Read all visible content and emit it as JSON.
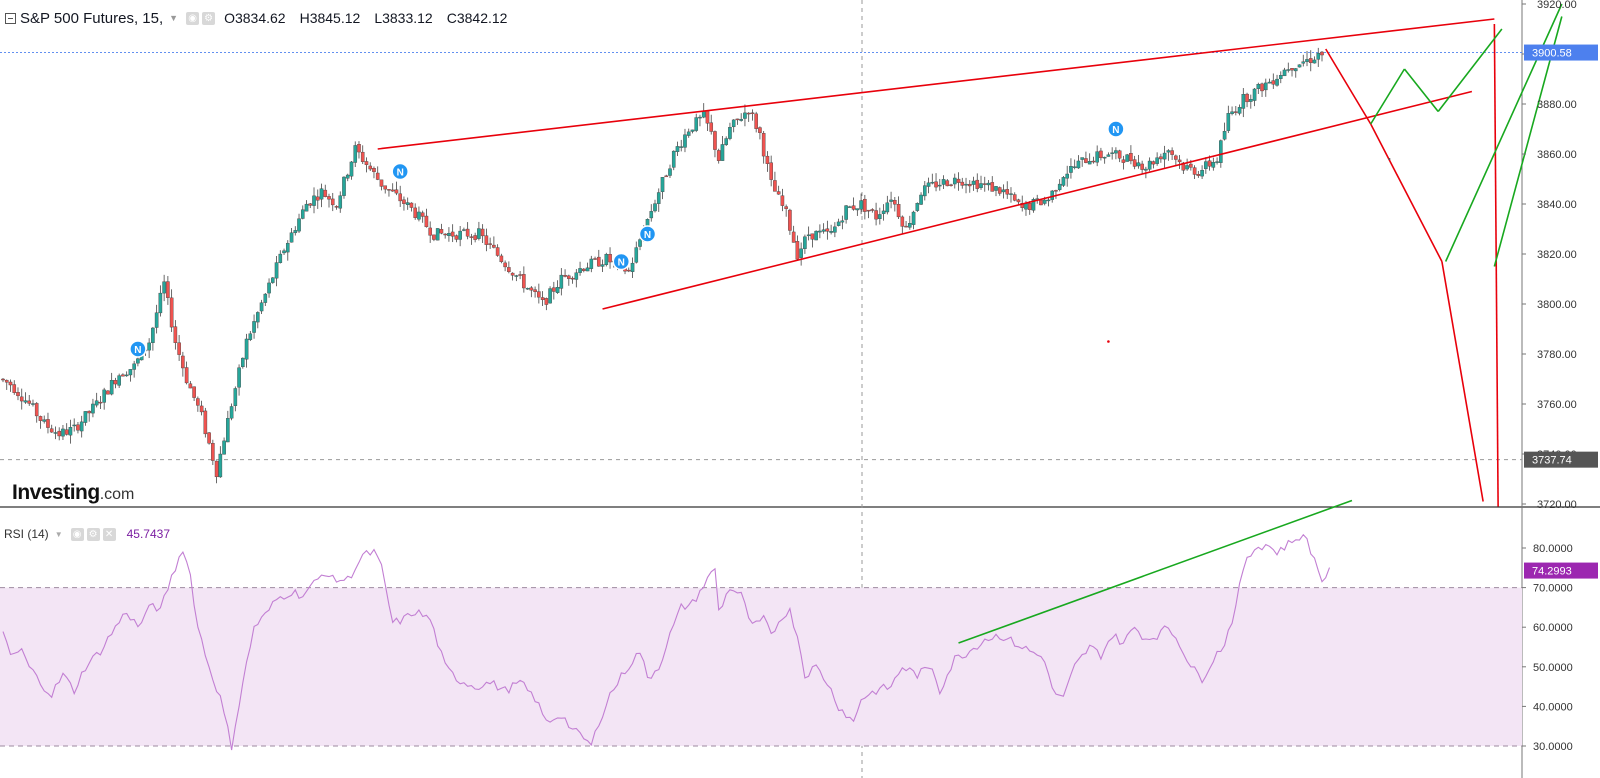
{
  "legend": {
    "title": "S&P 500 Futures, 15,",
    "open_label": "O",
    "open": "3834.62",
    "high_label": "H",
    "high": "3845.12",
    "low_label": "L",
    "low": "3833.12",
    "close_label": "C",
    "close": "3842.12"
  },
  "rsi_legend": {
    "title": "RSI (14)",
    "value": "45.7437"
  },
  "brand": {
    "name": "Investing",
    "suffix": ".com"
  },
  "colors": {
    "up": "#26a69a",
    "down": "#ef5350",
    "drawing_red": "#e8000b",
    "drawing_green": "#18a81f",
    "rsi_line": "#c27fd3",
    "rsi_band": "#f3e5f5",
    "price_tag": "#4d80ee",
    "rsi_tag": "#9c27b0",
    "last_tag": "#555555",
    "news_marker": "#2196f3"
  },
  "chart_data": [
    {
      "type": "candlestick",
      "name": "S&P 500 Futures",
      "y_axis": {
        "min": 3720,
        "max": 3920,
        "ticks": [
          "3720.00",
          "3740.00",
          "3760.00",
          "3780.00",
          "3800.00",
          "3820.00",
          "3840.00",
          "3860.00",
          "3880.00",
          "3900.00",
          "3920.00"
        ]
      },
      "price_tags": [
        {
          "label": "3900.58",
          "value": 3900.58,
          "kind": "current"
        },
        {
          "label": "3737.74",
          "value": 3737.74,
          "kind": "reference"
        }
      ],
      "anchors": [
        [
          0,
          3770
        ],
        [
          3,
          3768
        ],
        [
          8,
          3760
        ],
        [
          12,
          3752
        ],
        [
          16,
          3748
        ],
        [
          20,
          3750
        ],
        [
          26,
          3760
        ],
        [
          32,
          3772
        ],
        [
          36,
          3775
        ],
        [
          40,
          3785
        ],
        [
          44,
          3808
        ],
        [
          47,
          3785
        ],
        [
          50,
          3770
        ],
        [
          54,
          3755
        ],
        [
          58,
          3733
        ],
        [
          62,
          3760
        ],
        [
          66,
          3785
        ],
        [
          70,
          3800
        ],
        [
          76,
          3822
        ],
        [
          82,
          3840
        ],
        [
          86,
          3845
        ],
        [
          90,
          3840
        ],
        [
          95,
          3862
        ],
        [
          102,
          3848
        ],
        [
          110,
          3838
        ],
        [
          116,
          3828
        ],
        [
          122,
          3828
        ],
        [
          128,
          3828
        ],
        [
          134,
          3818
        ],
        [
          140,
          3808
        ],
        [
          145,
          3800
        ],
        [
          150,
          3810
        ],
        [
          156,
          3815
        ],
        [
          162,
          3818
        ],
        [
          168,
          3813
        ],
        [
          172,
          3830
        ],
        [
          176,
          3845
        ],
        [
          180,
          3860
        ],
        [
          184,
          3870
        ],
        [
          188,
          3875
        ],
        [
          190,
          3868
        ],
        [
          192,
          3858
        ],
        [
          195,
          3870
        ],
        [
          198,
          3875
        ],
        [
          200,
          3878
        ],
        [
          203,
          3868
        ],
        [
          206,
          3848
        ],
        [
          210,
          3836
        ],
        [
          213,
          3820
        ],
        [
          216,
          3828
        ],
        [
          222,
          3828
        ],
        [
          226,
          3838
        ],
        [
          230,
          3840
        ],
        [
          234,
          3835
        ],
        [
          238,
          3843
        ],
        [
          242,
          3830
        ],
        [
          246,
          3845
        ],
        [
          250,
          3848
        ],
        [
          256,
          3850
        ],
        [
          262,
          3848
        ],
        [
          268,
          3845
        ],
        [
          273,
          3838
        ],
        [
          276,
          3840
        ],
        [
          280,
          3842
        ],
        [
          284,
          3852
        ],
        [
          290,
          3858
        ],
        [
          296,
          3860
        ],
        [
          302,
          3858
        ],
        [
          306,
          3855
        ],
        [
          312,
          3862
        ],
        [
          316,
          3855
        ],
        [
          320,
          3853
        ],
        [
          325,
          3858
        ],
        [
          328,
          3875
        ],
        [
          332,
          3882
        ],
        [
          336,
          3886
        ],
        [
          340,
          3890
        ],
        [
          344,
          3895
        ],
        [
          350,
          3898
        ],
        [
          352,
          3900
        ]
      ],
      "news_markers": [
        {
          "label": "N",
          "x": 36,
          "y": 3782
        },
        {
          "label": "N",
          "x": 106,
          "y": 3853
        },
        {
          "label": "N",
          "x": 165,
          "y": 3817
        },
        {
          "label": "N",
          "x": 172,
          "y": 3828
        },
        {
          "label": "N",
          "x": 297,
          "y": 3870
        }
      ]
    },
    {
      "type": "line",
      "name": "RSI (14)",
      "y_axis": {
        "min": 30,
        "max": 80,
        "ticks": [
          "30.0000",
          "40.0000",
          "50.0000",
          "60.0000",
          "70.0000",
          "80.0000"
        ]
      },
      "band": [
        30,
        70
      ],
      "value_tag": {
        "label": "74.2993",
        "value": 74.2993
      },
      "anchors": [
        [
          0,
          58
        ],
        [
          2,
          53
        ],
        [
          5,
          54
        ],
        [
          7,
          50
        ],
        [
          10,
          46
        ],
        [
          13,
          43
        ],
        [
          16,
          48
        ],
        [
          19,
          44
        ],
        [
          22,
          50
        ],
        [
          26,
          54
        ],
        [
          30,
          60
        ],
        [
          33,
          64
        ],
        [
          36,
          60
        ],
        [
          40,
          66
        ],
        [
          42,
          64
        ],
        [
          44,
          70
        ],
        [
          46,
          75
        ],
        [
          48,
          80
        ],
        [
          50,
          73
        ],
        [
          52,
          60
        ],
        [
          55,
          50
        ],
        [
          58,
          42
        ],
        [
          60,
          34
        ],
        [
          61,
          30
        ],
        [
          64,
          46
        ],
        [
          67,
          60
        ],
        [
          70,
          63
        ],
        [
          73,
          67
        ],
        [
          77,
          69
        ],
        [
          80,
          68
        ],
        [
          84,
          72
        ],
        [
          86,
          74
        ],
        [
          88,
          72
        ],
        [
          92,
          72
        ],
        [
          96,
          78
        ],
        [
          99,
          79
        ],
        [
          101,
          75
        ],
        [
          104,
          61
        ],
        [
          107,
          62
        ],
        [
          110,
          64
        ],
        [
          114,
          62
        ],
        [
          118,
          50
        ],
        [
          121,
          47
        ],
        [
          126,
          45
        ],
        [
          130,
          46
        ],
        [
          134,
          44
        ],
        [
          138,
          46
        ],
        [
          142,
          42
        ],
        [
          145,
          36
        ],
        [
          149,
          38
        ],
        [
          152,
          34
        ],
        [
          155,
          32
        ],
        [
          157,
          30
        ],
        [
          159,
          36
        ],
        [
          162,
          43
        ],
        [
          166,
          49
        ],
        [
          170,
          54
        ],
        [
          172,
          47
        ],
        [
          175,
          50
        ],
        [
          178,
          58
        ],
        [
          181,
          65
        ],
        [
          184,
          66
        ],
        [
          188,
          72
        ],
        [
          190,
          75
        ],
        [
          191,
          64
        ],
        [
          194,
          70
        ],
        [
          197,
          68
        ],
        [
          200,
          60
        ],
        [
          203,
          62
        ],
        [
          205,
          58
        ],
        [
          208,
          63
        ],
        [
          210,
          64
        ],
        [
          212,
          58
        ],
        [
          214,
          48
        ],
        [
          217,
          50
        ],
        [
          220,
          46
        ],
        [
          223,
          40
        ],
        [
          225,
          38
        ],
        [
          227,
          36
        ],
        [
          229,
          42
        ],
        [
          233,
          44
        ],
        [
          237,
          45
        ],
        [
          240,
          50
        ],
        [
          244,
          48
        ],
        [
          248,
          50
        ],
        [
          250,
          44
        ],
        [
          254,
          52
        ],
        [
          258,
          54
        ],
        [
          262,
          57
        ],
        [
          266,
          58
        ],
        [
          270,
          56
        ],
        [
          274,
          54
        ],
        [
          278,
          52
        ],
        [
          280,
          44
        ],
        [
          283,
          42
        ],
        [
          286,
          50
        ],
        [
          290,
          55
        ],
        [
          293,
          53
        ],
        [
          296,
          58
        ],
        [
          299,
          56
        ],
        [
          302,
          60
        ],
        [
          305,
          57
        ],
        [
          308,
          58
        ],
        [
          311,
          60
        ],
        [
          314,
          56
        ],
        [
          317,
          50
        ],
        [
          320,
          47
        ],
        [
          323,
          52
        ],
        [
          326,
          56
        ],
        [
          329,
          65
        ],
        [
          331,
          75
        ],
        [
          334,
          80
        ],
        [
          337,
          81
        ],
        [
          340,
          79
        ],
        [
          343,
          81
        ],
        [
          346,
          83
        ],
        [
          348,
          82
        ],
        [
          350,
          77
        ],
        [
          352,
          72
        ],
        [
          354,
          74
        ]
      ]
    }
  ]
}
